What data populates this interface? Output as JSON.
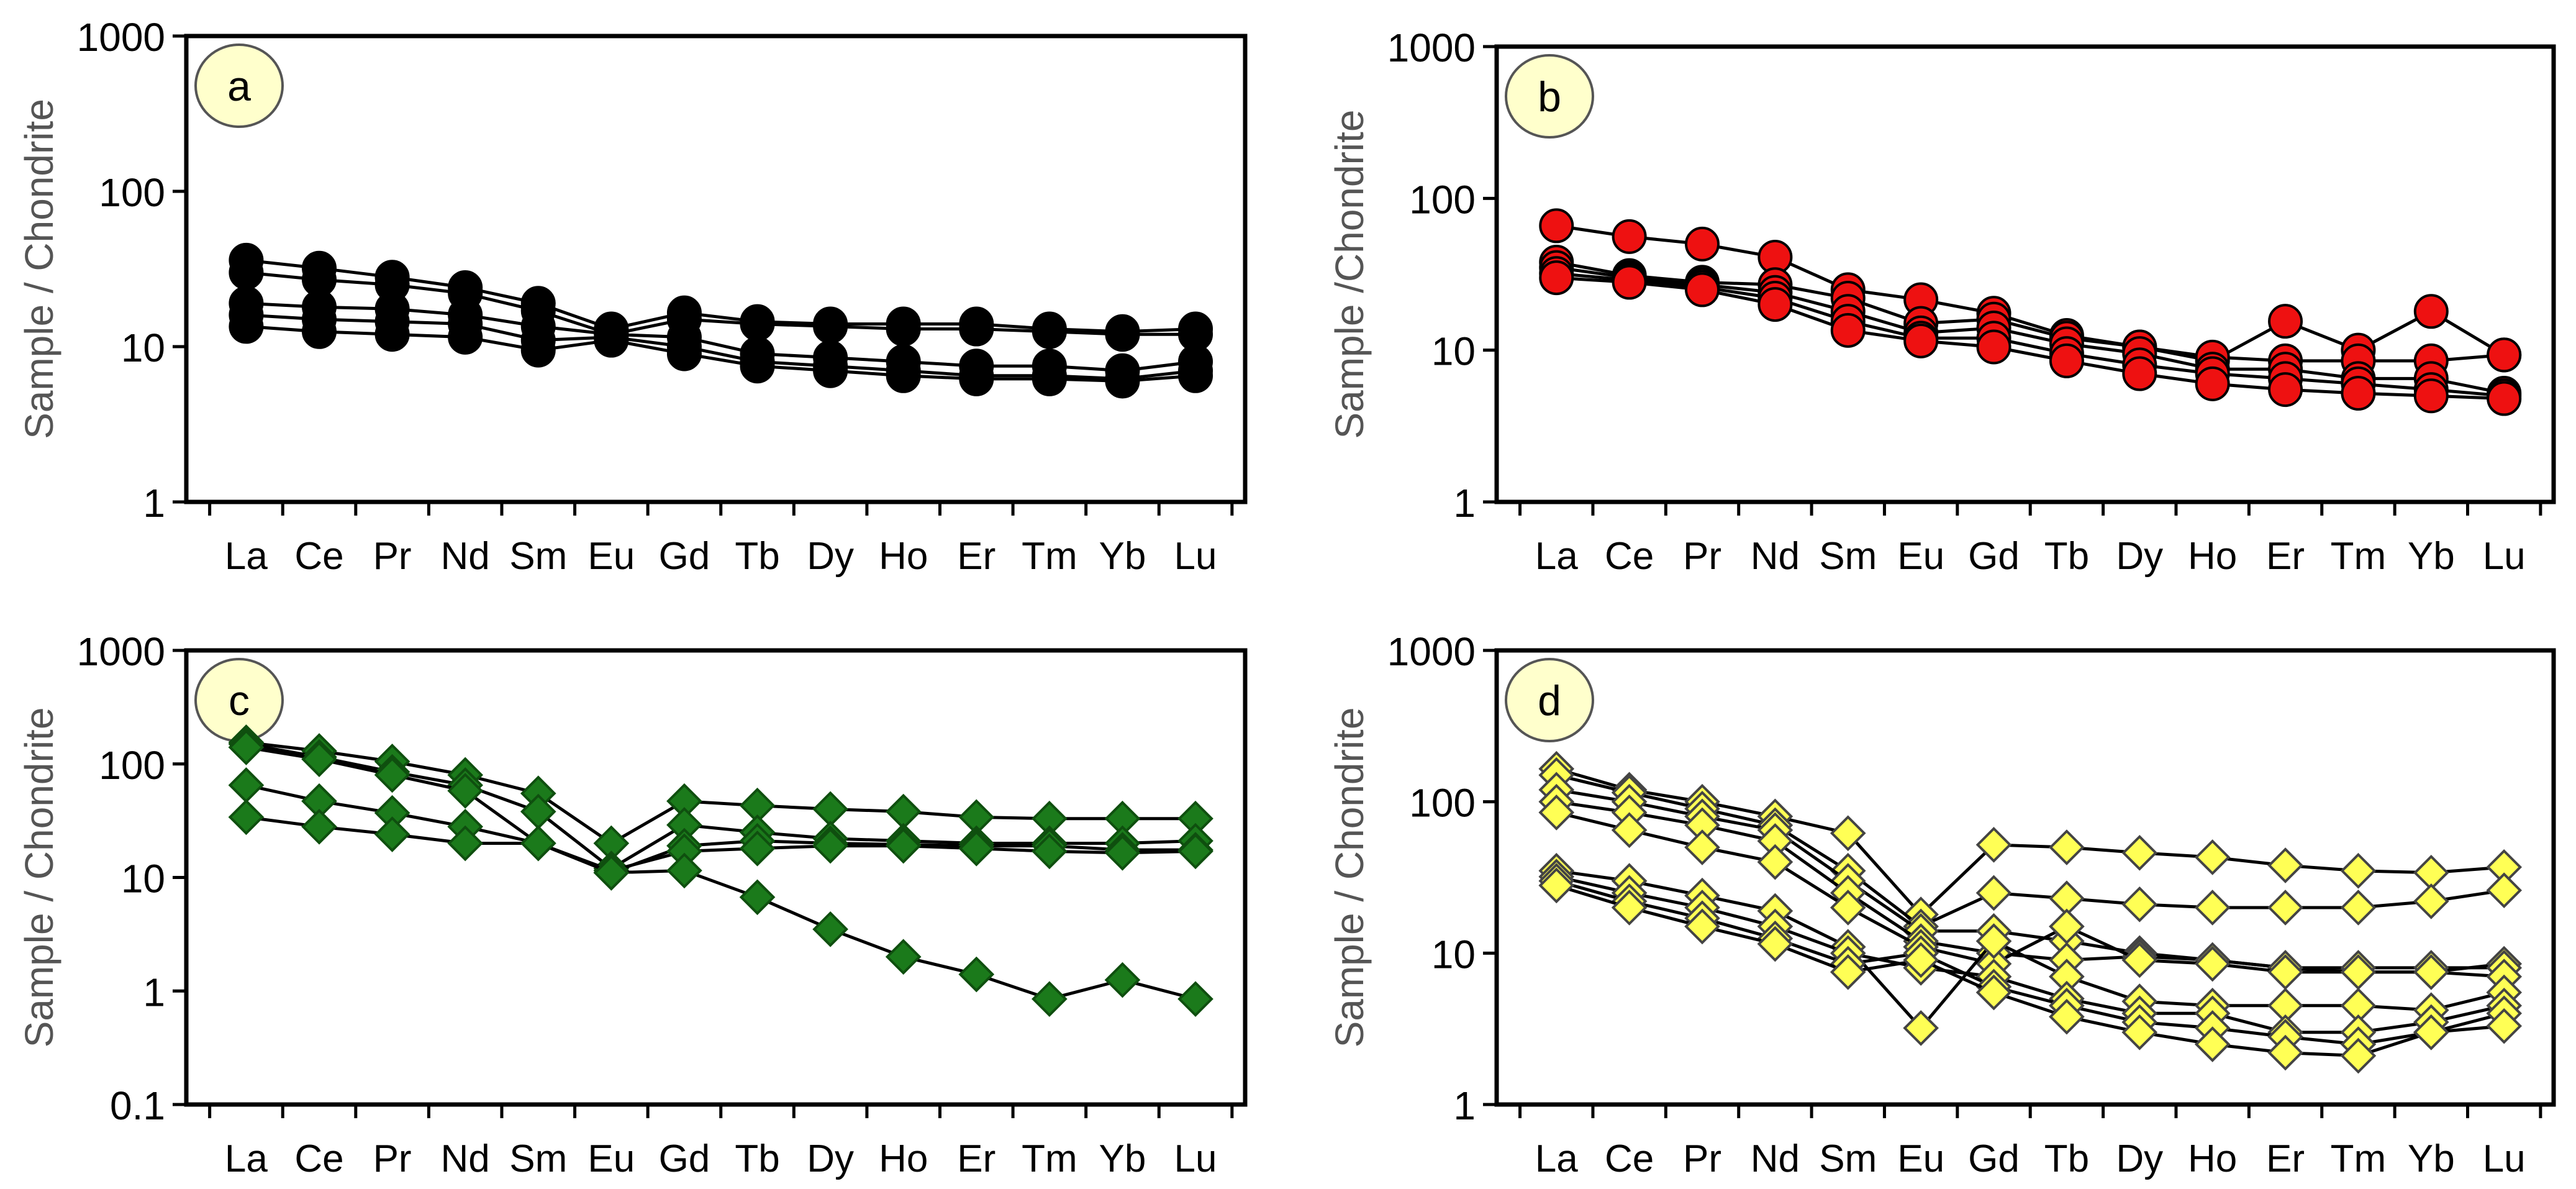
{
  "chart_data": [
    {
      "type": "line",
      "panel_label": "a",
      "ylabel": "Sample / Chondrite",
      "yscale": "log",
      "ylim": [
        1,
        1000
      ],
      "yticks": [
        "1",
        "10",
        "100",
        "1000"
      ],
      "categories": [
        "La",
        "Ce",
        "Pr",
        "Nd",
        "Sm",
        "Eu",
        "Gd",
        "Tb",
        "Dy",
        "Ho",
        "Er",
        "Tm",
        "Yb",
        "Lu"
      ],
      "marker": "circle",
      "color": "#000000",
      "series": [
        {
          "values": [
            36,
            32,
            28,
            24,
            19,
            13,
            16.5,
            14.5,
            14,
            14,
            14,
            13,
            12.5,
            13
          ]
        },
        {
          "values": [
            30,
            27,
            25,
            22,
            17,
            12,
            15,
            14,
            13.5,
            13,
            13,
            12.5,
            12,
            12
          ]
        },
        {
          "values": [
            19,
            18,
            17.5,
            16,
            13.5,
            12,
            11.5,
            9,
            8.5,
            8,
            7.5,
            7.5,
            7,
            8
          ]
        },
        {
          "values": [
            16,
            15,
            14.5,
            14,
            11,
            11.5,
            10,
            8,
            7.5,
            7,
            6.5,
            6.5,
            6.2,
            7
          ]
        },
        {
          "values": [
            13.5,
            12.5,
            12,
            11.5,
            9.5,
            11,
            9,
            7.5,
            7,
            6.5,
            6.2,
            6.2,
            6,
            6.5
          ]
        }
      ]
    },
    {
      "type": "line",
      "panel_label": "b",
      "ylabel": "Sample /Chondrite",
      "yscale": "log",
      "ylim": [
        1,
        1000
      ],
      "yticks": [
        "1",
        "10",
        "100",
        "1000"
      ],
      "categories": [
        "La",
        "Ce",
        "Pr",
        "Nd",
        "Sm",
        "Eu",
        "Gd",
        "Tb",
        "Dy",
        "Ho",
        "Er",
        "Tm",
        "Yb",
        "Lu"
      ],
      "marker": "circle",
      "color": "#ee1111",
      "series": [
        {
          "values": [
            66,
            56,
            50,
            41,
            25,
            21.5,
            17.5,
            12.5,
            10.5,
            8.5,
            15.5,
            10,
            18,
            9.3
          ]
        },
        {
          "values": [
            38,
            31,
            28,
            27,
            22,
            15,
            16,
            12,
            10.5,
            9,
            8.5,
            8.5,
            8.5,
            9.3
          ]
        },
        {
          "values": [
            35,
            30,
            27,
            24,
            18,
            13,
            14,
            11,
            9.5,
            7.5,
            7.5,
            6.5,
            6.5,
            5.2
          ]
        },
        {
          "values": [
            32,
            29,
            26,
            22,
            15.5,
            12,
            12,
            9.5,
            8,
            7,
            6.5,
            6,
            5.5,
            5
          ]
        },
        {
          "values": [
            30,
            28,
            25,
            20,
            13.5,
            11.5,
            10.5,
            8.5,
            7,
            6,
            5.5,
            5.2,
            5,
            4.8
          ]
        }
      ]
    },
    {
      "type": "line",
      "panel_label": "c",
      "ylabel": "Sample / Chondrite",
      "yscale": "log",
      "ylim": [
        0.1,
        1000
      ],
      "yticks": [
        "0.1",
        "1",
        "10",
        "100",
        "1000"
      ],
      "categories": [
        "La",
        "Ce",
        "Pr",
        "Nd",
        "Sm",
        "Eu",
        "Gd",
        "Tb",
        "Dy",
        "Ho",
        "Er",
        "Tm",
        "Yb",
        "Lu"
      ],
      "marker": "diamond",
      "color": "#1b7a1b",
      "series": [
        {
          "values": [
            155,
            130,
            105,
            80,
            55,
            20,
            47,
            43,
            40,
            38,
            34,
            33,
            33,
            33
          ]
        },
        {
          "values": [
            150,
            115,
            85,
            65,
            38,
            12,
            29,
            25,
            22,
            21,
            20,
            20,
            20,
            21
          ]
        },
        {
          "values": [
            65,
            47,
            37,
            28,
            20,
            11,
            19,
            21,
            20,
            19.5,
            19,
            19,
            17.5,
            17.5
          ]
        },
        {
          "values": [
            34,
            28,
            24,
            20,
            20,
            11.5,
            17,
            18,
            19,
            19,
            18,
            17,
            16.5,
            17
          ]
        },
        {
          "values": [
            140,
            110,
            80,
            58,
            20,
            11,
            11.5,
            6.7,
            3.5,
            2.0,
            1.4,
            0.85,
            1.25,
            0.85
          ]
        }
      ]
    },
    {
      "type": "line",
      "panel_label": "d",
      "ylabel": "Sample / Chondrite",
      "yscale": "log",
      "ylim": [
        1,
        1000
      ],
      "yticks": [
        "1",
        "10",
        "100",
        "1000"
      ],
      "categories": [
        "La",
        "Ce",
        "Pr",
        "Nd",
        "Sm",
        "Eu",
        "Gd",
        "Tb",
        "Dy",
        "Ho",
        "Er",
        "Tm",
        "Yb",
        "Lu"
      ],
      "marker": "diamond",
      "color": "#ffff55",
      "series": [
        {
          "values": [
            165,
            120,
            100,
            80,
            62,
            18,
            52,
            50,
            46,
            43,
            38,
            35,
            34,
            37
          ]
        },
        {
          "values": [
            150,
            115,
            90,
            70,
            35,
            15,
            25,
            23,
            21,
            20,
            20,
            20,
            22,
            26
          ]
        },
        {
          "values": [
            120,
            100,
            80,
            65,
            30,
            14,
            14,
            12,
            10,
            9,
            8,
            7.5,
            7.5,
            8.5
          ]
        },
        {
          "values": [
            100,
            85,
            70,
            55,
            25,
            12,
            10,
            9,
            9.5,
            9,
            8,
            8,
            8,
            8
          ]
        },
        {
          "values": [
            85,
            65,
            50,
            40,
            20,
            11,
            8.5,
            15,
            9,
            8.5,
            7.5,
            7.5,
            7.5,
            7
          ]
        },
        {
          "values": [
            35,
            30,
            24,
            19,
            11,
            3.2,
            12,
            7,
            4.8,
            4.5,
            4.5,
            4.5,
            4.2,
            5.5
          ]
        },
        {
          "values": [
            32,
            25,
            20,
            15,
            10,
            8,
            7,
            5,
            4,
            4,
            3,
            3,
            3.5,
            4.5
          ]
        },
        {
          "values": [
            30,
            22,
            17,
            12.5,
            8.5,
            10,
            6,
            4.5,
            3.5,
            3.2,
            2.8,
            2.5,
            3,
            4
          ]
        },
        {
          "values": [
            28,
            20,
            15,
            11.5,
            7.5,
            9,
            5.5,
            3.8,
            3,
            2.5,
            2.2,
            2.1,
            3,
            3.3
          ]
        }
      ]
    }
  ]
}
